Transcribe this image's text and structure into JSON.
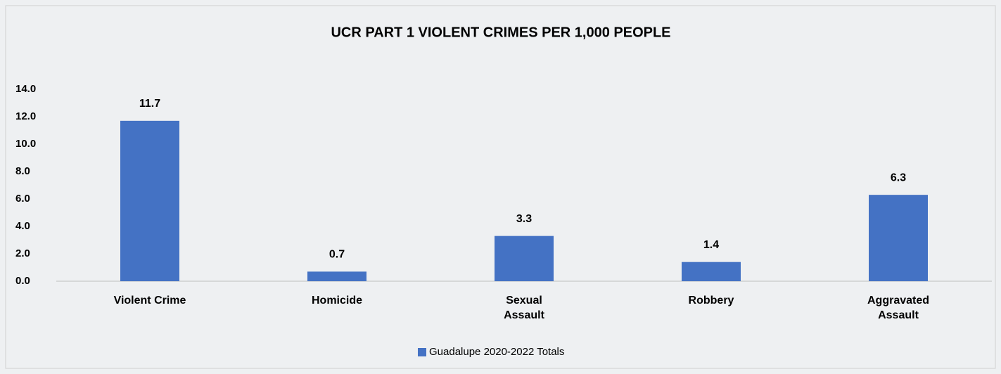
{
  "chart_data": {
    "type": "bar",
    "title": "UCR PART 1 VIOLENT CRIMES PER 1,000 PEOPLE",
    "categories": [
      "Violent Crime",
      "Homicide",
      "Sexual Assault",
      "Robbery",
      "Aggravated Assault"
    ],
    "series": [
      {
        "name": "Guadalupe 2020-2022 Totals",
        "color": "#4472c4",
        "values": [
          11.7,
          0.7,
          3.3,
          1.4,
          6.3
        ]
      }
    ],
    "ylim": [
      0,
      14
    ],
    "yticks": [
      {
        "value": 0,
        "label": "0.0"
      },
      {
        "value": 2,
        "label": "2.0"
      },
      {
        "value": 4,
        "label": "4.0"
      },
      {
        "value": 6,
        "label": "6.0"
      },
      {
        "value": 8,
        "label": "8.0"
      },
      {
        "value": 10,
        "label": "10.0"
      },
      {
        "value": 12,
        "label": "12.0"
      },
      {
        "value": 14,
        "label": "14.0"
      }
    ],
    "grid": false,
    "legend": "bottom"
  }
}
